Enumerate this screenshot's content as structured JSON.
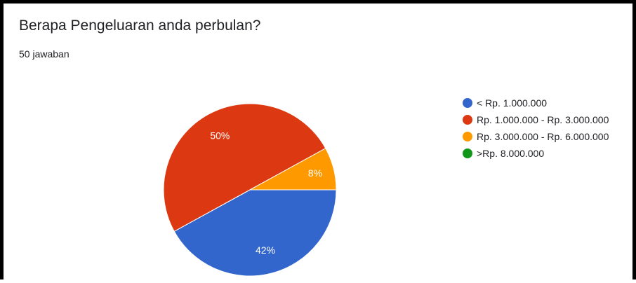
{
  "header": {
    "title": "Berapa Pengeluaran anda perbulan?",
    "response_count": "50 jawaban"
  },
  "chart_data": {
    "type": "pie",
    "title": "Berapa Pengeluaran anda perbulan?",
    "categories": [
      "< Rp. 1.000.000",
      "Rp. 1.000.000 - Rp. 3.000.000",
      "Rp. 3.000.000 - Rp. 6.000.000",
      ">Rp. 8.000.000"
    ],
    "values": [
      42,
      50,
      8,
      0
    ],
    "value_labels": [
      "42%",
      "50%",
      "8%",
      ""
    ],
    "colors": [
      "#3366cc",
      "#dc3912",
      "#ff9900",
      "#109618"
    ],
    "legend_position": "right"
  }
}
